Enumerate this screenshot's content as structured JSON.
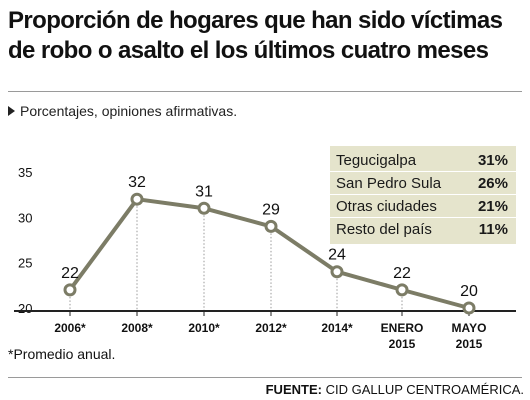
{
  "header": {
    "title_line1": "Proporción de hogares que han sido víctimas",
    "title_line2": "de robo o asalto el los últimos cuatro meses",
    "subtitle": "Porcentajes, opiniones afirmativas."
  },
  "legend": {
    "rows": [
      {
        "label": "Tegucigalpa",
        "value": "31%"
      },
      {
        "label": "San Pedro Sula",
        "value": "26%"
      },
      {
        "label": "Otras ciudades",
        "value": "21%"
      },
      {
        "label": "Resto del país",
        "value": "11%"
      }
    ]
  },
  "footer": {
    "note": "*Promedio anual.",
    "source_label": "FUENTE:",
    "source_text": "CID GALLUP CENTROAMÉRICA."
  },
  "colors": {
    "line": "#7c7c66",
    "legend_bg": "#e5e4cc",
    "axis": "#222222"
  },
  "chart_data": {
    "type": "line",
    "title": "Proporción de hogares que han sido víctimas de robo o asalto el los últimos cuatro meses",
    "subtitle": "Porcentajes, opiniones afirmativas.",
    "xlabel": "",
    "ylabel": "",
    "ylim": [
      20,
      35
    ],
    "yticks": [
      20,
      25,
      30,
      35
    ],
    "grid": false,
    "categories": [
      {
        "line1": "2006*",
        "line2": ""
      },
      {
        "line1": "2008*",
        "line2": ""
      },
      {
        "line1": "2010*",
        "line2": ""
      },
      {
        "line1": "2012*",
        "line2": ""
      },
      {
        "line1": "2014*",
        "line2": ""
      },
      {
        "line1": "ENERO",
        "line2": "2015"
      },
      {
        "line1": "MAYO",
        "line2": "2015"
      }
    ],
    "series": [
      {
        "values": [
          22,
          32,
          31,
          29,
          24,
          22,
          20
        ]
      }
    ]
  }
}
